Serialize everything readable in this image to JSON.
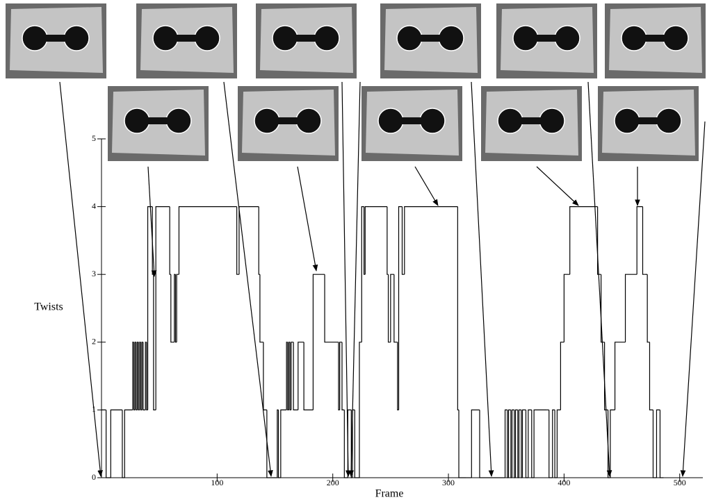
{
  "chart_data": {
    "type": "line",
    "step": "post",
    "xlabel": "Frame",
    "ylabel": "Twists",
    "xlim": [
      0,
      520
    ],
    "ylim": [
      0,
      5
    ],
    "xticks": [
      100,
      200,
      300,
      400,
      500
    ],
    "yticks": [
      0,
      1,
      2,
      3,
      4,
      5
    ],
    "series": [
      {
        "color": "#000000",
        "x": [
          0,
          4,
          8,
          18,
          20,
          27,
          28,
          29,
          30,
          31,
          32,
          33,
          34,
          35,
          36,
          38,
          39,
          40,
          44,
          45,
          47,
          58,
          59,
          60,
          63,
          64,
          65,
          67,
          117,
          118,
          119,
          136,
          137,
          140,
          143,
          151,
          152,
          153,
          155,
          160,
          161,
          162,
          163,
          164,
          166,
          170,
          175,
          183,
          193,
          205,
          206,
          208,
          210,
          213,
          216,
          217,
          219,
          223,
          225,
          227,
          228,
          232,
          247,
          248,
          250,
          253,
          256,
          257,
          260,
          262,
          263,
          308,
          309,
          315,
          320,
          321,
          327,
          348,
          349,
          351,
          352,
          354,
          355,
          357,
          358,
          360,
          361,
          363,
          364,
          367,
          369,
          372,
          374,
          385,
          387,
          390,
          392,
          394,
          397,
          400,
          405,
          428,
          429,
          432,
          435,
          438,
          440,
          444,
          453,
          463,
          468,
          470,
          472,
          474,
          477,
          480,
          483,
          486
        ],
        "values": [
          1,
          0,
          1,
          0,
          1,
          2,
          1,
          2,
          1,
          2,
          1,
          2,
          1,
          2,
          1,
          2,
          1,
          4,
          3,
          1,
          4,
          4,
          3,
          2,
          3,
          2,
          3,
          4,
          3,
          3,
          4,
          3,
          2,
          1,
          0,
          0,
          1,
          0,
          1,
          2,
          1,
          2,
          1,
          2,
          1,
          2,
          1,
          3,
          2,
          1,
          2,
          1,
          0,
          1,
          0,
          1,
          0,
          2,
          4,
          3,
          4,
          4,
          3,
          2,
          3,
          2,
          1,
          4,
          3,
          4,
          4,
          1,
          0,
          0,
          1,
          1,
          0,
          0,
          1,
          0,
          1,
          0,
          1,
          0,
          1,
          0,
          1,
          0,
          1,
          0,
          1,
          0,
          1,
          1,
          0,
          1,
          0,
          1,
          2,
          3,
          4,
          4,
          3,
          2,
          1,
          0,
          1,
          2,
          3,
          4,
          3,
          3,
          2,
          1,
          0,
          1,
          0,
          0
        ]
      }
    ]
  }
}
